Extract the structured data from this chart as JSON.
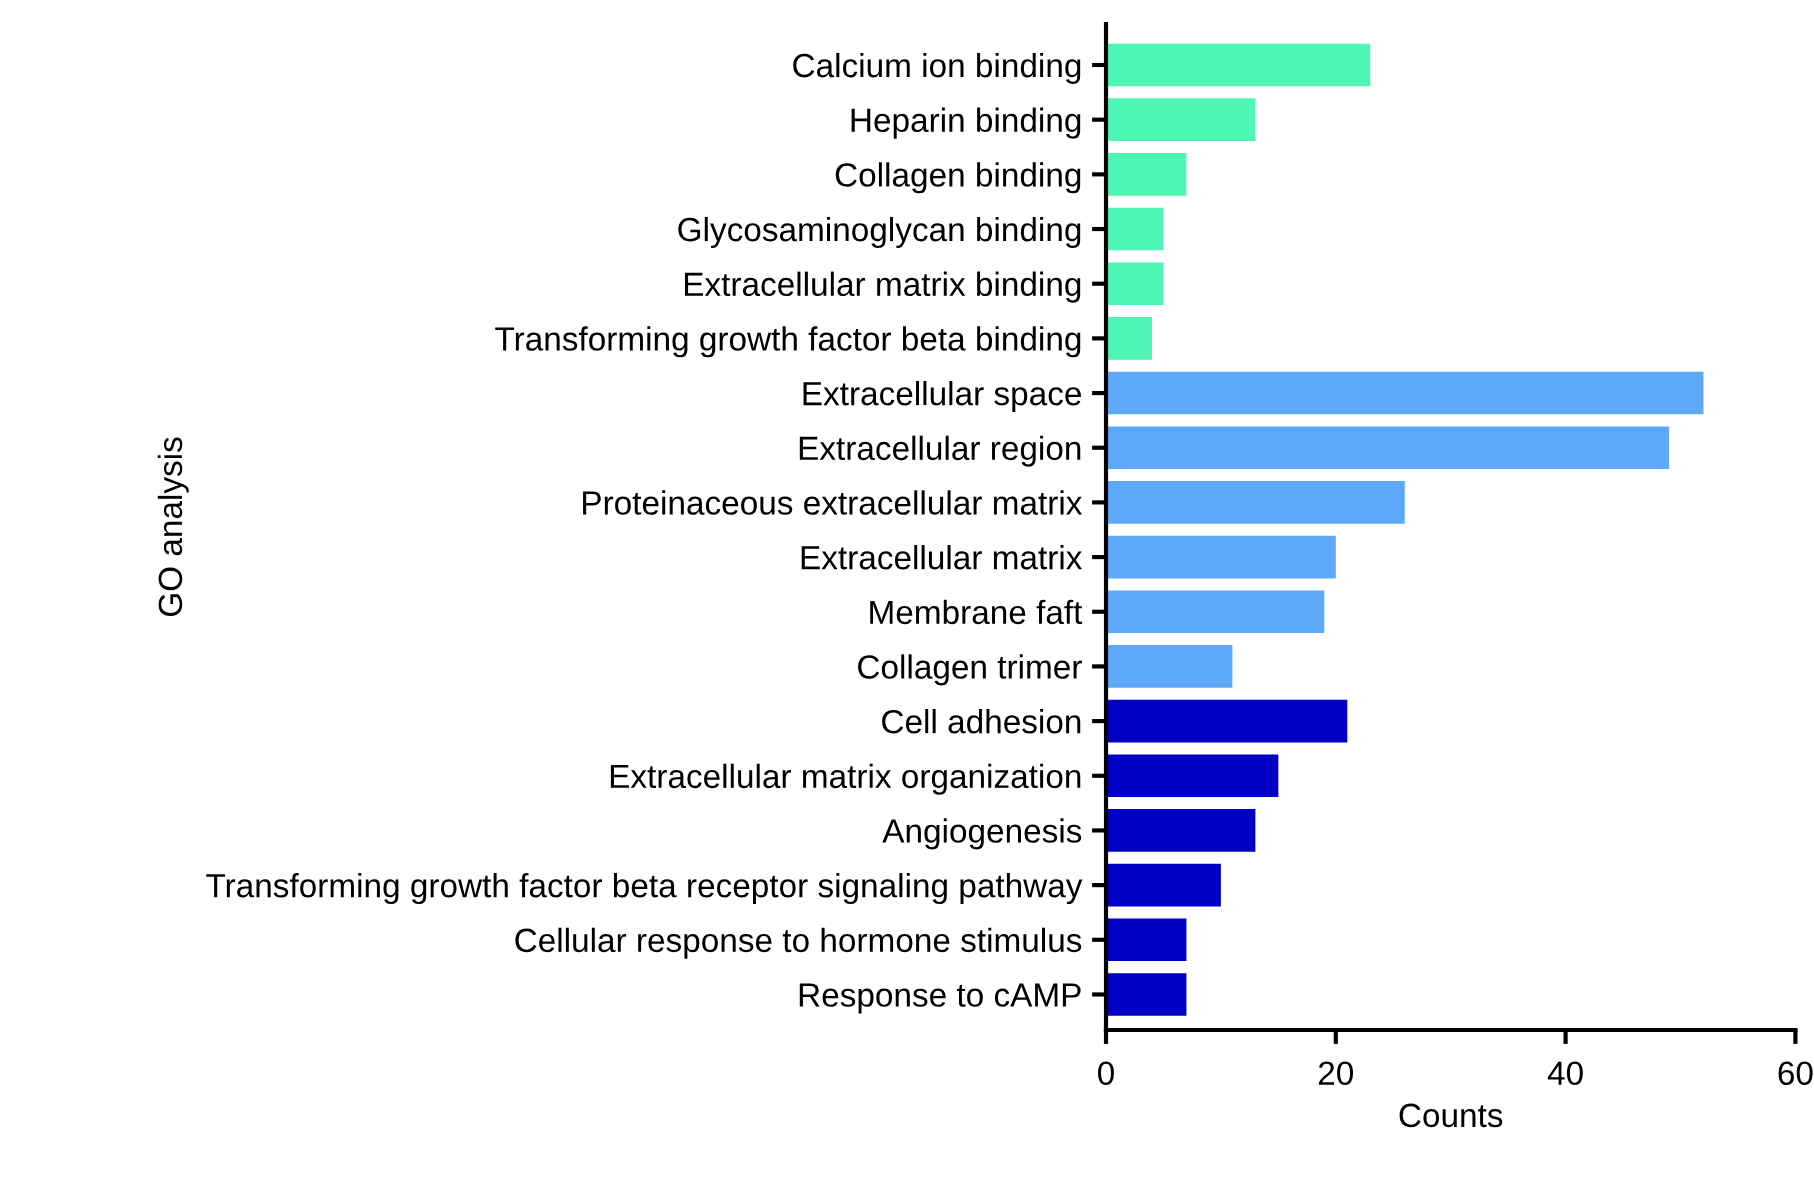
{
  "chart_data": {
    "type": "bar",
    "orientation": "horizontal",
    "xlabel": "Counts",
    "ylabel": "GO analysis",
    "categories": [
      "Calcium ion binding",
      "Heparin binding",
      "Collagen binding",
      "Glycosaminoglycan binding",
      "Extracellular matrix binding",
      "Transforming growth factor beta binding",
      "Extracellular space",
      "Extracellular region",
      "Proteinaceous extracellular matrix",
      "Extracellular matrix",
      "Membrane faft",
      "Collagen trimer",
      "Cell adhesion",
      "Extracellular matrix organization",
      "Angiogenesis",
      "Transforming growth factor beta receptor signaling pathway",
      "Cellular response to hormone stimulus",
      "Response to cAMP"
    ],
    "values": [
      23,
      13,
      7,
      5,
      5,
      4,
      52,
      49,
      26,
      20,
      19,
      11,
      21,
      15,
      13,
      10,
      7,
      7
    ],
    "colors": [
      "#4ef5b4",
      "#4ef5b4",
      "#4ef5b4",
      "#4ef5b4",
      "#4ef5b4",
      "#4ef5b4",
      "#5ea8fa",
      "#5ea8fa",
      "#5ea8fa",
      "#5ea8fa",
      "#5ea8fa",
      "#5ea8fa",
      "#0000c4",
      "#0000c4",
      "#0000c4",
      "#0000c4",
      "#0000c4",
      "#0000c4"
    ],
    "xlim": [
      0,
      60
    ],
    "xticks": [
      0,
      20,
      40,
      60
    ],
    "grid": false,
    "legend": false
  }
}
